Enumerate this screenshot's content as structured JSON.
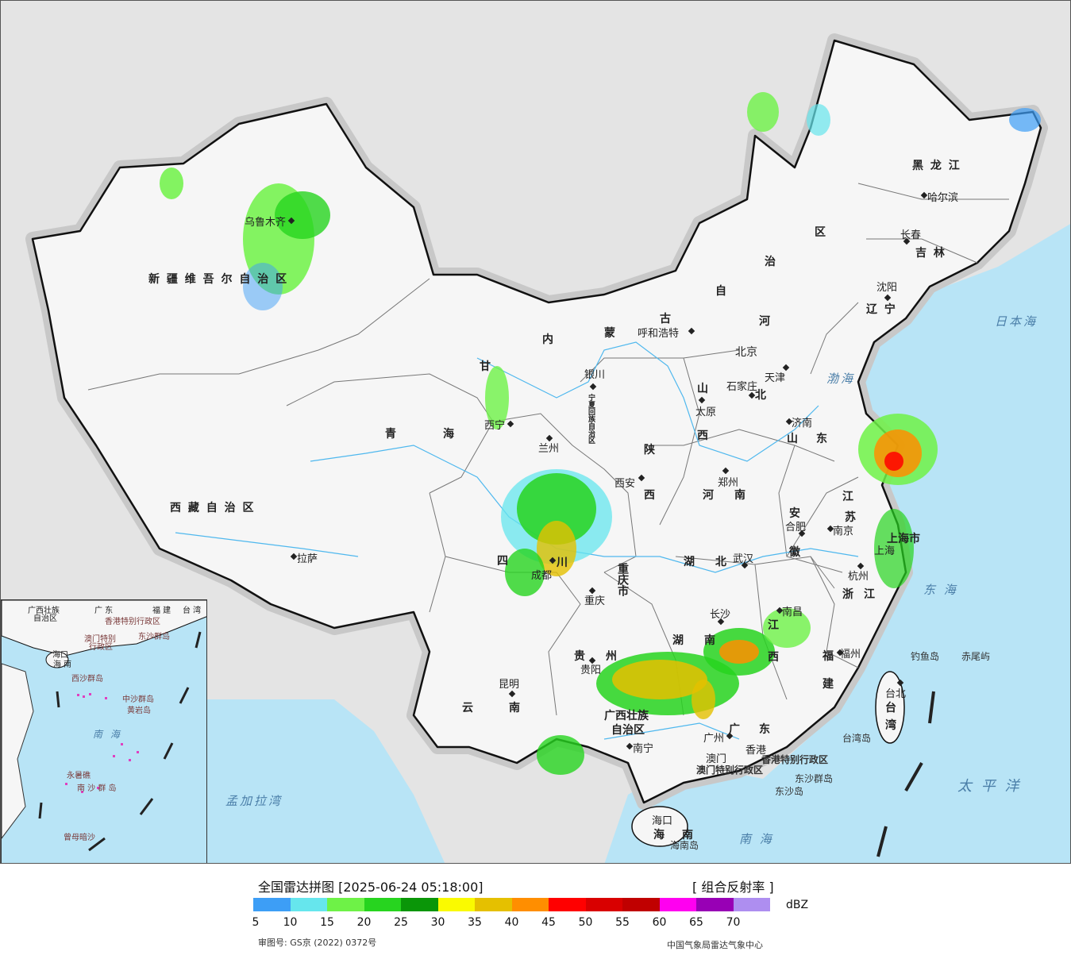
{
  "map": {
    "provinces": [
      "新 疆 维 吾 尔 自 治 区",
      "西 藏 自 治 区",
      "青",
      "海",
      "内",
      "蒙",
      "古",
      "自",
      "治",
      "区",
      "黑 龙 江",
      "吉 林",
      "辽 宁",
      "河",
      "北",
      "山",
      "西",
      "陕",
      "西",
      "甘",
      "宁夏回族自治区",
      "四",
      "川",
      "云",
      "南",
      "贵",
      "州",
      "广西壮族",
      "自治区",
      "湖",
      "南",
      "湖",
      "北",
      "河",
      "南",
      "山",
      "东",
      "江",
      "苏",
      "安",
      "徽",
      "浙",
      "江",
      "江",
      "西",
      "福",
      "建",
      "广",
      "东",
      "海",
      "南",
      "台",
      "湾",
      "重庆市",
      "上海市"
    ],
    "cities": [
      "乌鲁木齐",
      "拉萨",
      "西宁",
      "兰州",
      "银川",
      "呼和浩特",
      "北京",
      "天津",
      "石家庄",
      "太原",
      "济南",
      "郑州",
      "西安",
      "成都",
      "重庆",
      "武汉",
      "合肥",
      "南京",
      "上海",
      "杭州",
      "南昌",
      "长沙",
      "贵阳",
      "昆明",
      "南宁",
      "广州",
      "澳门",
      "香港",
      "福州",
      "台北",
      "海口",
      "沈阳",
      "长春",
      "哈尔滨"
    ],
    "seas": [
      "日本海",
      "渤海",
      "东 海",
      "太 平 洋",
      "南 海",
      "孟加拉湾"
    ],
    "islands": [
      "钓鱼岛",
      "赤尾屿",
      "台湾岛",
      "东沙群岛",
      "东沙岛",
      "海南岛",
      "香港特别行政区",
      "澳门特别行政区"
    ],
    "inset_labels": [
      "广西壮族",
      "自治区",
      "广 东",
      "福 建",
      "台 湾",
      "香港特别行政区",
      "澳门特别",
      "行政区",
      "东沙群岛",
      "海口",
      "海 南",
      "西沙群岛",
      "中沙群岛",
      "黄岩岛",
      "南 海",
      "永暑礁",
      "南 沙 群 岛",
      "曾母暗沙"
    ]
  },
  "legend": {
    "title": "全国雷达拼图 [2025-06-24 05:18:00]",
    "product": "[ 组合反射率 ]",
    "unit": "dBZ",
    "ticks": [
      "5",
      "10",
      "15",
      "20",
      "25",
      "30",
      "35",
      "40",
      "45",
      "50",
      "55",
      "60",
      "65",
      "70"
    ],
    "colors": [
      "#3d9ef6",
      "#66e6ed",
      "#6ef247",
      "#27d41f",
      "#0a9608",
      "#fafa00",
      "#e5c000",
      "#ff8e00",
      "#ff0000",
      "#d90000",
      "#c00000",
      "#ff00f0",
      "#9800b5",
      "#ae8ef0"
    ],
    "approval": "审图号: GS京 (2022) 0372号",
    "source": "中国气象局雷达气象中心"
  }
}
